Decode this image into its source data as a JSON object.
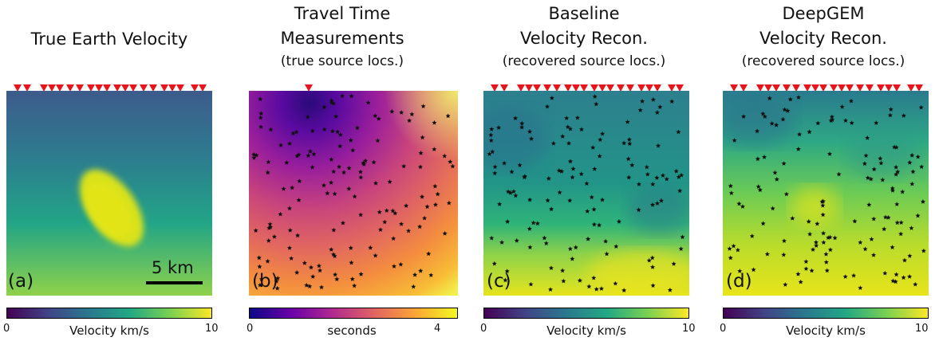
{
  "panels": [
    {
      "id": "a",
      "title_lines": [
        "True Earth Velocity",
        "",
        ""
      ],
      "label": "(a)",
      "colorbar": {
        "min_label": "0",
        "max_label": "10",
        "mid_label": "",
        "title": "Velocity km/s",
        "colormap": "viridis"
      },
      "scalebar_label": "5 km"
    },
    {
      "id": "b",
      "title_lines": [
        "Travel Time",
        "Measurements",
        "(true source locs.)"
      ],
      "label": "(b)",
      "colorbar": {
        "min_label": "0",
        "max_label": "",
        "mid_label": "4",
        "title": "seconds",
        "colormap": "plasma"
      }
    },
    {
      "id": "c",
      "title_lines": [
        "Baseline",
        "Velocity Recon.",
        "(recovered source locs.)"
      ],
      "label": "(c)",
      "colorbar": {
        "min_label": "0",
        "max_label": "10",
        "mid_label": "",
        "title": "Velocity km/s",
        "colormap": "viridis"
      }
    },
    {
      "id": "d",
      "title_lines": [
        "DeepGEM",
        "Velocity Recon.",
        "(recovered source locs.)"
      ],
      "label": "(d)",
      "colorbar": {
        "min_label": "0",
        "max_label": "10",
        "mid_label": "",
        "title": "Velocity km/s",
        "colormap": "viridis"
      }
    }
  ],
  "colors": {
    "receiver_marker": "#e8141c",
    "source_marker": "#111111",
    "viridis": [
      "#440154",
      "#3b528b",
      "#21918c",
      "#5ec962",
      "#fde725"
    ],
    "plasma": [
      "#0d0887",
      "#7e03a8",
      "#cc4778",
      "#f89540",
      "#f0f921"
    ]
  },
  "icons": {
    "receiver": "red-triangle-icon",
    "source": "star-icon"
  }
}
